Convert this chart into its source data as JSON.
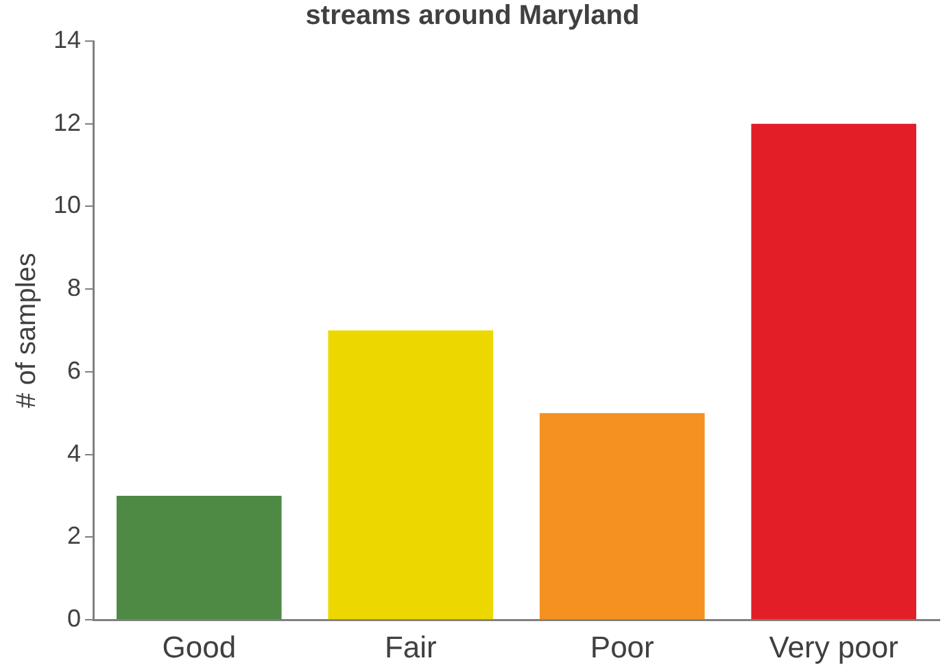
{
  "chart_data": {
    "type": "bar",
    "title": "streams around Maryland",
    "ylabel": "# of samples",
    "categories": [
      "Good",
      "Fair",
      "Poor",
      "Very poor"
    ],
    "values": [
      3,
      7,
      5,
      12
    ],
    "colors": [
      "#4e8a44",
      "#ecd800",
      "#f39220",
      "#e31e26"
    ],
    "ylim": [
      0,
      14
    ],
    "yticks": [
      0,
      2,
      4,
      6,
      8,
      10,
      12,
      14
    ],
    "grid": false,
    "legend": false
  }
}
